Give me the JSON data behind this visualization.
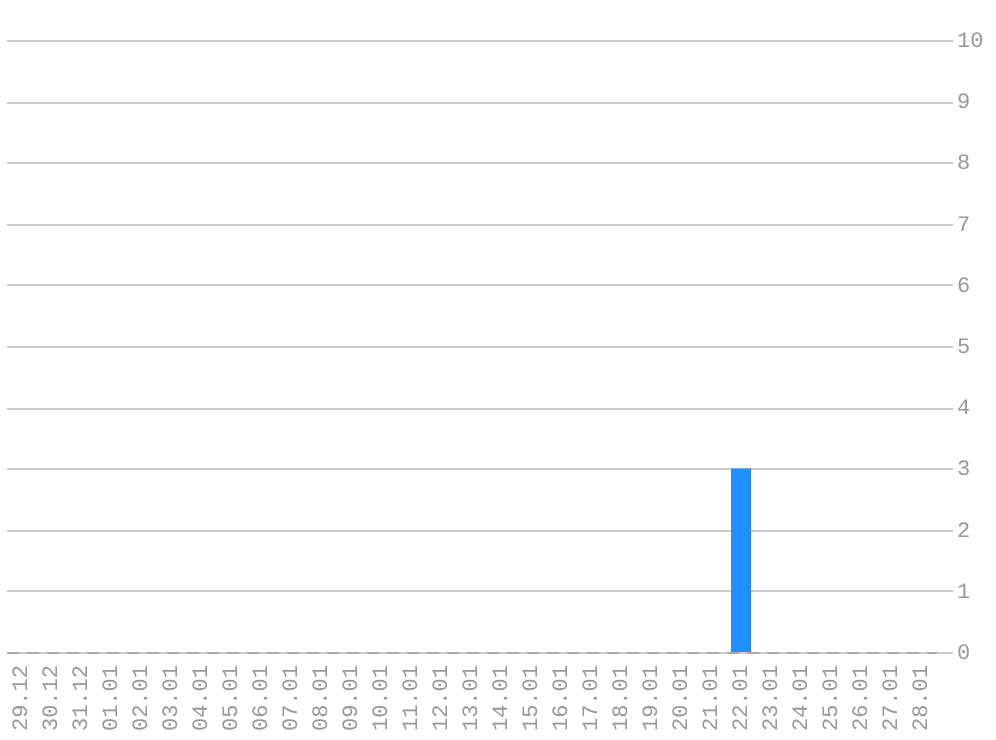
{
  "chart_data": {
    "type": "bar",
    "categories": [
      "29.12",
      "30.12",
      "31.12",
      "01.01",
      "02.01",
      "03.01",
      "04.01",
      "05.01",
      "06.01",
      "07.01",
      "08.01",
      "09.01",
      "10.01",
      "11.01",
      "12.01",
      "13.01",
      "14.01",
      "15.01",
      "16.01",
      "17.01",
      "18.01",
      "19.01",
      "20.01",
      "21.01",
      "22.01",
      "23.01",
      "24.01",
      "25.01",
      "26.01",
      "27.01",
      "28.01"
    ],
    "values": [
      0,
      0,
      0,
      0,
      0,
      0,
      0,
      0,
      0,
      0,
      0,
      0,
      0,
      0,
      0,
      0,
      0,
      0,
      0,
      0,
      0,
      0,
      0,
      0,
      3,
      0,
      0,
      0,
      0,
      0,
      0
    ],
    "color": "#1e90ff",
    "ylim": [
      0,
      10
    ],
    "yticks": [
      0,
      1,
      2,
      3,
      4,
      5,
      6,
      7,
      8,
      9,
      10
    ],
    "grid": "y"
  }
}
